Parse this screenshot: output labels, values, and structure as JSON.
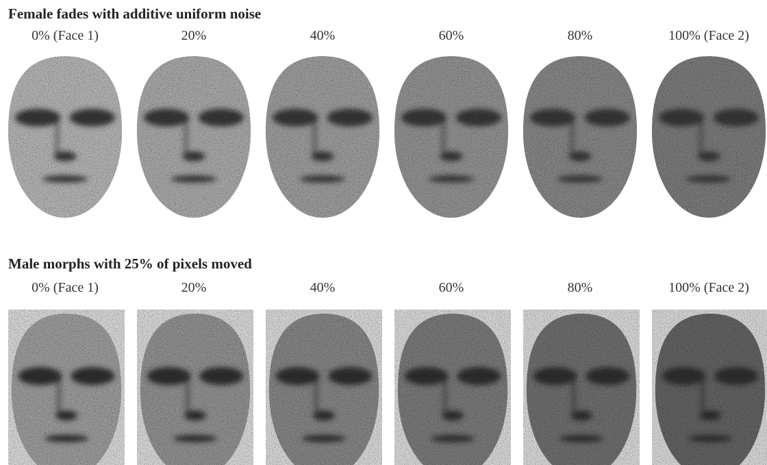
{
  "rows": [
    {
      "title": "Female fades with additive uniform noise",
      "labels": [
        "0% (Face 1)",
        "20%",
        "40%",
        "60%",
        "80%",
        "100% (Face 2)"
      ]
    },
    {
      "title": "Male morphs with 25% of pixels moved",
      "labels": [
        "0% (Face 1)",
        "20%",
        "40%",
        "60%",
        "80%",
        "100% (Face 2)"
      ]
    }
  ]
}
